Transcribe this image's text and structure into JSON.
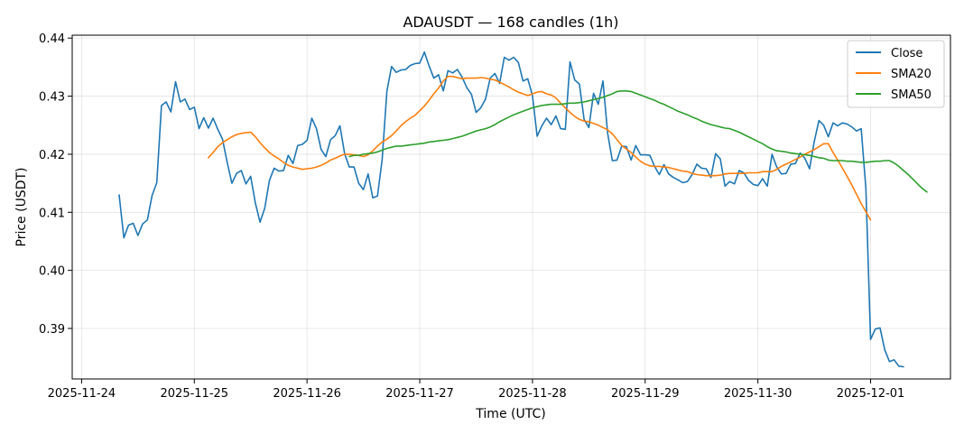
{
  "chart_data": {
    "type": "line",
    "title": "ADAUSDT — 168 candles (1h)",
    "xlabel": "Time (UTC)",
    "ylabel": "Price (USDT)",
    "x_start": "2025-11-24 08:00",
    "x_step_hours": 1,
    "xlim": [
      "2025-11-23 22:00",
      "2025-12-01 17:00"
    ],
    "ylim": [
      0.3813,
      0.4405
    ],
    "x_ticks": [
      "2025-11-24",
      "2025-11-25",
      "2025-11-26",
      "2025-11-27",
      "2025-11-28",
      "2025-11-29",
      "2025-11-30",
      "2025-12-01"
    ],
    "y_ticks": [
      "0.39",
      "0.40",
      "0.41",
      "0.42",
      "0.43",
      "0.44"
    ],
    "grid": true,
    "legend_position": "top-right",
    "series": [
      {
        "name": "Close",
        "color": "#1f77b4",
        "values": [
          0.413,
          0.4056,
          0.4078,
          0.4081,
          0.406,
          0.408,
          0.4087,
          0.4129,
          0.4151,
          0.4284,
          0.429,
          0.4273,
          0.4325,
          0.429,
          0.4295,
          0.4277,
          0.4281,
          0.4244,
          0.4263,
          0.4245,
          0.4262,
          0.4243,
          0.4226,
          0.4186,
          0.415,
          0.4167,
          0.4172,
          0.4149,
          0.4162,
          0.4116,
          0.4083,
          0.4107,
          0.4155,
          0.4176,
          0.4171,
          0.4172,
          0.4198,
          0.4184,
          0.4215,
          0.4217,
          0.4224,
          0.4262,
          0.4244,
          0.4208,
          0.4196,
          0.4225,
          0.4232,
          0.4249,
          0.4201,
          0.4178,
          0.4178,
          0.415,
          0.4139,
          0.4166,
          0.4125,
          0.4128,
          0.4191,
          0.4308,
          0.4351,
          0.4341,
          0.4345,
          0.4346,
          0.4353,
          0.4356,
          0.4357,
          0.4376,
          0.4352,
          0.4331,
          0.4337,
          0.4309,
          0.4344,
          0.434,
          0.4346,
          0.4333,
          0.4315,
          0.4303,
          0.4272,
          0.428,
          0.4295,
          0.4331,
          0.4339,
          0.4322,
          0.4367,
          0.4362,
          0.4367,
          0.4358,
          0.4326,
          0.433,
          0.4301,
          0.4231,
          0.4249,
          0.4262,
          0.4251,
          0.4266,
          0.4244,
          0.4243,
          0.4359,
          0.4328,
          0.4321,
          0.426,
          0.4246,
          0.4305,
          0.4286,
          0.4326,
          0.4236,
          0.4189,
          0.419,
          0.4214,
          0.4213,
          0.419,
          0.4215,
          0.4199,
          0.4199,
          0.4198,
          0.4179,
          0.4165,
          0.4182,
          0.4166,
          0.416,
          0.4156,
          0.4151,
          0.4153,
          0.4165,
          0.4183,
          0.4176,
          0.4175,
          0.416,
          0.4201,
          0.4192,
          0.4145,
          0.4153,
          0.4149,
          0.4172,
          0.4168,
          0.4155,
          0.4148,
          0.4146,
          0.4158,
          0.4145,
          0.42,
          0.4178,
          0.4166,
          0.4167,
          0.4183,
          0.4184,
          0.4202,
          0.4193,
          0.4175,
          0.4222,
          0.4258,
          0.425,
          0.423,
          0.4254,
          0.4249,
          0.4254,
          0.4252,
          0.4247,
          0.424,
          0.4244,
          0.4141,
          0.3881,
          0.3899,
          0.3901,
          0.3863,
          0.3843,
          0.3846,
          0.3835,
          0.3834
        ]
      },
      {
        "name": "SMA20",
        "color": "#ff7f0e",
        "start_index": 19,
        "values": [
          0.4194,
          0.4203,
          0.4213,
          0.422,
          0.4225,
          0.423,
          0.4234,
          0.4236,
          0.4237,
          0.4238,
          0.423,
          0.422,
          0.4211,
          0.4203,
          0.4197,
          0.4192,
          0.4186,
          0.4181,
          0.4178,
          0.4176,
          0.4174,
          0.4175,
          0.4176,
          0.4178,
          0.4181,
          0.4185,
          0.419,
          0.4193,
          0.4197,
          0.42,
          0.42,
          0.4199,
          0.4198,
          0.4196,
          0.4199,
          0.4206,
          0.4214,
          0.4221,
          0.4226,
          0.4232,
          0.424,
          0.4249,
          0.4256,
          0.4262,
          0.4267,
          0.4275,
          0.4283,
          0.4293,
          0.4304,
          0.4314,
          0.4326,
          0.4334,
          0.4334,
          0.4332,
          0.433,
          0.4331,
          0.4331,
          0.4331,
          0.4332,
          0.4331,
          0.4329,
          0.4328,
          0.4324,
          0.432,
          0.4316,
          0.4311,
          0.4307,
          0.4304,
          0.4301,
          0.4304,
          0.4307,
          0.4308,
          0.4304,
          0.4302,
          0.4297,
          0.4288,
          0.428,
          0.4272,
          0.4265,
          0.426,
          0.4257,
          0.4256,
          0.4253,
          0.425,
          0.4246,
          0.4242,
          0.4235,
          0.4225,
          0.4215,
          0.4209,
          0.4203,
          0.4195,
          0.4188,
          0.4183,
          0.418,
          0.4179,
          0.4179,
          0.4178,
          0.4177,
          0.4175,
          0.4173,
          0.4171,
          0.417,
          0.4167,
          0.4165,
          0.4164,
          0.4163,
          0.4163,
          0.4163,
          0.4164,
          0.4166,
          0.4167,
          0.4167,
          0.4167,
          0.4167,
          0.4168,
          0.4168,
          0.4168,
          0.417,
          0.417,
          0.417,
          0.4174,
          0.4179,
          0.4183,
          0.4187,
          0.4191,
          0.4195,
          0.42,
          0.4204,
          0.4208,
          0.4213,
          0.4218,
          0.4218,
          0.4203,
          0.419,
          0.4176,
          0.4162,
          0.4147,
          0.4131,
          0.4115,
          0.4101,
          0.4087
        ]
      },
      {
        "name": "SMA50",
        "color": "#2ca02c",
        "start_index": 49,
        "values": [
          0.4196,
          0.4198,
          0.4198,
          0.42,
          0.4201,
          0.4202,
          0.4204,
          0.4207,
          0.421,
          0.4212,
          0.4214,
          0.4214,
          0.4215,
          0.4216,
          0.4217,
          0.4218,
          0.4219,
          0.4221,
          0.4222,
          0.4223,
          0.4224,
          0.4225,
          0.4227,
          0.4229,
          0.4231,
          0.4234,
          0.4237,
          0.424,
          0.4242,
          0.4244,
          0.4247,
          0.4251,
          0.4256,
          0.426,
          0.4264,
          0.4268,
          0.4271,
          0.4274,
          0.4277,
          0.428,
          0.4282,
          0.4284,
          0.4285,
          0.4286,
          0.4286,
          0.4286,
          0.4287,
          0.4288,
          0.4288,
          0.4289,
          0.429,
          0.4292,
          0.4294,
          0.4296,
          0.4298,
          0.4301,
          0.4304,
          0.4308,
          0.4309,
          0.4309,
          0.4308,
          0.4305,
          0.4302,
          0.4299,
          0.4296,
          0.4293,
          0.4289,
          0.4286,
          0.4282,
          0.4278,
          0.4274,
          0.4271,
          0.4268,
          0.4264,
          0.4261,
          0.4257,
          0.4254,
          0.4251,
          0.4249,
          0.4247,
          0.4245,
          0.4244,
          0.4241,
          0.4238,
          0.4234,
          0.423,
          0.4226,
          0.4222,
          0.4218,
          0.4213,
          0.4209,
          0.4206,
          0.4205,
          0.4204,
          0.4202,
          0.4201,
          0.42,
          0.4199,
          0.4198,
          0.4196,
          0.4194,
          0.4193,
          0.419,
          0.4189,
          0.4189,
          0.4189,
          0.4188,
          0.4188,
          0.4187,
          0.4186,
          0.4186,
          0.4187,
          0.4188,
          0.4188,
          0.4189,
          0.4189,
          0.4185,
          0.4179,
          0.4172,
          0.4165,
          0.4157,
          0.4149,
          0.4141,
          0.4135
        ]
      }
    ]
  }
}
